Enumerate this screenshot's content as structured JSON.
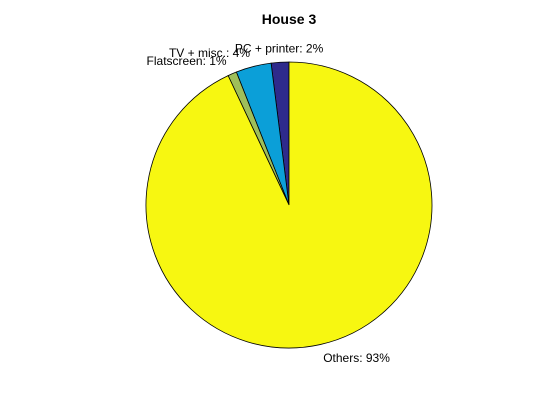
{
  "chart_data": {
    "type": "pie",
    "title": "House 3",
    "slices": [
      {
        "label": "PC + printer: 2%",
        "value": 2,
        "color": "#2e2a8c"
      },
      {
        "label": "TV + misc.: 4%",
        "value": 4,
        "color": "#0b9fd8"
      },
      {
        "label": "Flatscreen: 1%",
        "value": 1,
        "color": "#9fbf5a"
      },
      {
        "label": "Others: 93%",
        "value": 93,
        "color": "#f7f711"
      }
    ],
    "start": "12 o'clock",
    "direction": "counterclockwise"
  }
}
